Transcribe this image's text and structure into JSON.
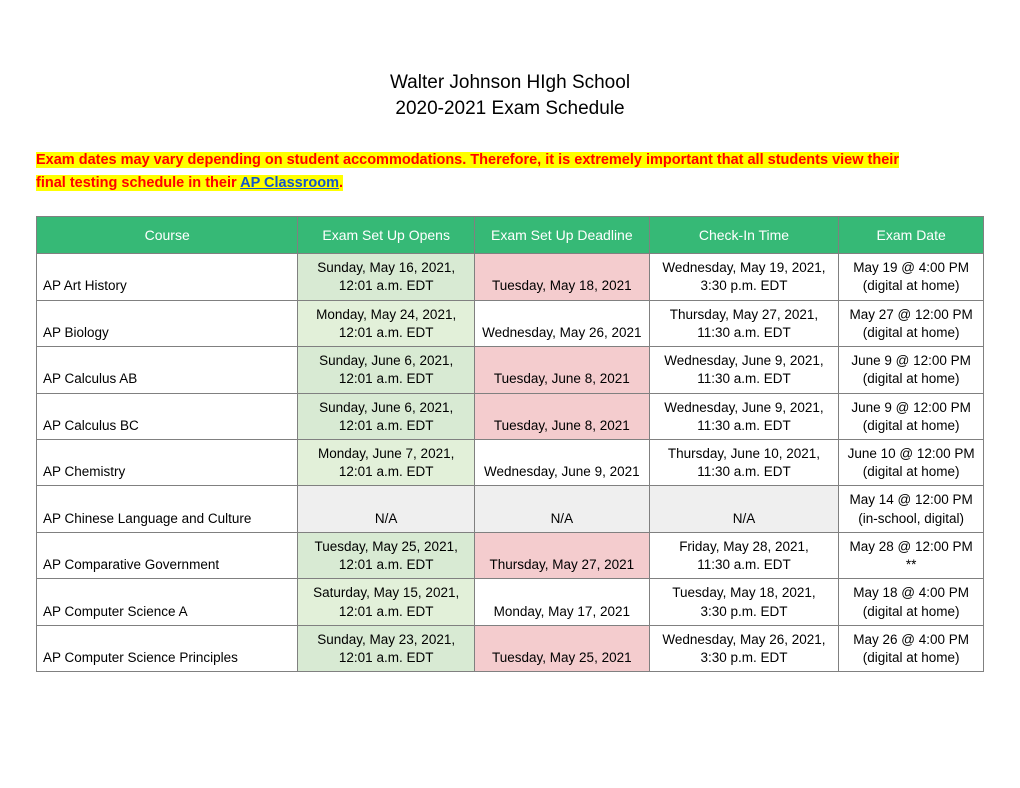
{
  "title_line1": "Walter Johnson HIgh School",
  "title_line2": "2020-2021 Exam Schedule",
  "notice": {
    "part1": "Exam dates may vary depending on student accommodations. Therefore, it is extremely important that all students view their",
    "part2": "final testing schedule in their ",
    "link_text": "AP Classroom",
    "period": "."
  },
  "columns": [
    "Course",
    "Exam Set Up Opens",
    "Exam Set Up Deadline",
    "Check-In Time",
    "Exam Date"
  ],
  "colors": {
    "header_bg": "#36b976",
    "header_fg": "#ffffff",
    "green_light": "#e2f0d9",
    "green_med": "#d8ead3",
    "red_light": "#f4ccce",
    "gray_light": "#efefef",
    "highlight_bg": "#ffff00",
    "highlight_fg": "#ff0000",
    "link": "#1155cc",
    "border": "#808080"
  },
  "rows": [
    {
      "course": "AP Art History",
      "setup_open_l1": "Sunday, May 16, 2021,",
      "setup_open_l2": "12:01 a.m. EDT",
      "setup_open_bg": "green_med",
      "deadline_l1": "Tuesday, May 18, 2021",
      "deadline_l2": "",
      "deadline_bg": "red_light",
      "checkin_l1": "Wednesday, May 19, 2021,",
      "checkin_l2": "3:30 p.m. EDT",
      "checkin_bg": "",
      "exam_l1": "May 19 @ 4:00 PM",
      "exam_l2": "(digital at home)",
      "exam_bg": ""
    },
    {
      "course": "AP Biology",
      "setup_open_l1": "Monday, May 24, 2021,",
      "setup_open_l2": "12:01 a.m. EDT",
      "setup_open_bg": "green_lt",
      "deadline_l1": "Wednesday, May 26, 2021",
      "deadline_l2": "",
      "deadline_bg": "",
      "checkin_l1": "Thursday, May 27, 2021,",
      "checkin_l2": "11:30 a.m. EDT",
      "checkin_bg": "",
      "exam_l1": "May 27 @ 12:00 PM",
      "exam_l2": "(digital at home)",
      "exam_bg": ""
    },
    {
      "course": "AP Calculus AB",
      "setup_open_l1": "Sunday, June 6, 2021,",
      "setup_open_l2": "12:01 a.m. EDT",
      "setup_open_bg": "green_med",
      "deadline_l1": "Tuesday, June 8, 2021",
      "deadline_l2": "",
      "deadline_bg": "red_light",
      "checkin_l1": "Wednesday, June 9, 2021,",
      "checkin_l2": "11:30 a.m. EDT",
      "checkin_bg": "",
      "exam_l1": "June 9 @ 12:00 PM",
      "exam_l2": "(digital at home)",
      "exam_bg": ""
    },
    {
      "course": "AP Calculus BC",
      "setup_open_l1": "Sunday, June 6, 2021,",
      "setup_open_l2": "12:01 a.m. EDT",
      "setup_open_bg": "green_med",
      "deadline_l1": "Tuesday, June 8, 2021",
      "deadline_l2": "",
      "deadline_bg": "red_light",
      "checkin_l1": "Wednesday, June 9, 2021,",
      "checkin_l2": "11:30 a.m. EDT",
      "checkin_bg": "",
      "exam_l1": "June 9 @ 12:00 PM",
      "exam_l2": "(digital at home)",
      "exam_bg": ""
    },
    {
      "course": "AP Chemistry",
      "setup_open_l1": "Monday, June 7, 2021,",
      "setup_open_l2": "12:01 a.m. EDT",
      "setup_open_bg": "green_lt",
      "deadline_l1": "",
      "deadline_l2": "Wednesday, June 9, 2021",
      "deadline_bg": "",
      "checkin_l1": "Thursday, June 10, 2021,",
      "checkin_l2": "11:30 a.m. EDT",
      "checkin_bg": "",
      "exam_l1": "June 10 @ 12:00 PM",
      "exam_l2": "(digital at home)",
      "exam_bg": ""
    },
    {
      "course": "AP Chinese Language and Culture",
      "setup_open_l1": "",
      "setup_open_l2": "N/A",
      "setup_open_bg": "gray_lt",
      "deadline_l1": "",
      "deadline_l2": "N/A",
      "deadline_bg": "gray_lt",
      "checkin_l1": "",
      "checkin_l2": "N/A",
      "checkin_bg": "gray_lt",
      "exam_l1": "May 14 @ 12:00 PM",
      "exam_l2": "(in-school, digital)",
      "exam_bg": ""
    },
    {
      "course": "AP Comparative Government",
      "setup_open_l1": "Tuesday, May 25, 2021,",
      "setup_open_l2": "12:01 a.m. EDT",
      "setup_open_bg": "green_med",
      "deadline_l1": "Thursday, May 27, 2021",
      "deadline_l2": "",
      "deadline_bg": "red_light",
      "checkin_l1": "Friday, May 28, 2021,",
      "checkin_l2": "11:30 a.m. EDT",
      "checkin_bg": "",
      "exam_l1": "May 28 @ 12:00 PM  **",
      "exam_l2": "",
      "exam_bg": ""
    },
    {
      "course": "AP Computer Science A",
      "setup_open_l1": "Saturday, May 15, 2021,",
      "setup_open_l2": "12:01 a.m. EDT",
      "setup_open_bg": "green_lt",
      "deadline_l1": "",
      "deadline_l2": "Monday, May 17, 2021",
      "deadline_bg": "",
      "checkin_l1": "Tuesday, May 18, 2021,",
      "checkin_l2": "3:30 p.m. EDT",
      "checkin_bg": "",
      "exam_l1": "May 18 @ 4:00 PM",
      "exam_l2": "(digital at home)",
      "exam_bg": ""
    },
    {
      "course": "AP Computer Science Principles",
      "setup_open_l1": "Sunday, May 23, 2021,",
      "setup_open_l2": "12:01 a.m. EDT",
      "setup_open_bg": "green_med",
      "deadline_l1": "Tuesday, May 25, 2021",
      "deadline_l2": "",
      "deadline_bg": "red_light",
      "checkin_l1": "Wednesday, May 26, 2021,",
      "checkin_l2": "3:30 p.m. EDT",
      "checkin_bg": "",
      "exam_l1": "May 26 @ 4:00 PM",
      "exam_l2": "(digital at home)",
      "exam_bg": ""
    }
  ]
}
